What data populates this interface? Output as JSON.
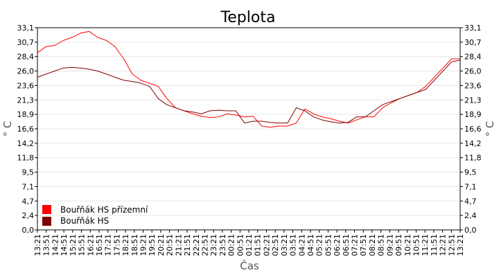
{
  "chart_data": {
    "type": "line",
    "title": "Teplota",
    "xlabel": "Čas",
    "ylabel": "° C",
    "ylim": [
      0,
      33.1
    ],
    "yticks": [
      "0,0",
      "2,4",
      "4,7",
      "7,1",
      "9,5",
      "11,8",
      "14,2",
      "16,6",
      "18,9",
      "21,3",
      "23,6",
      "26,0",
      "28,4",
      "30,7",
      "33,1"
    ],
    "ytick_values": [
      0,
      2.365,
      4.729,
      7.094,
      9.457,
      11.821,
      14.186,
      16.55,
      18.914,
      21.279,
      23.643,
      26.007,
      28.371,
      30.736,
      33.1
    ],
    "xticks": [
      "13:21",
      "13:51",
      "14:21",
      "14:51",
      "15:21",
      "15:51",
      "16:21",
      "16:51",
      "17:21",
      "17:51",
      "18:21",
      "18:51",
      "19:21",
      "19:51",
      "20:21",
      "20:51",
      "21:21",
      "21:51",
      "22:21",
      "22:51",
      "23:21",
      "23:51",
      "00:21",
      "00:51",
      "01:21",
      "01:51",
      "02:21",
      "02:51",
      "03:21",
      "03:51",
      "04:21",
      "04:51",
      "05:21",
      "05:51",
      "06:21",
      "06:51",
      "07:21",
      "07:51",
      "08:21",
      "08:51",
      "09:21",
      "09:51",
      "10:21",
      "10:51",
      "11:21",
      "11:51",
      "12:21",
      "12:51",
      "13:21"
    ],
    "grid": true,
    "legend_position": "bottom-left",
    "series": [
      {
        "name": "Bouřňák HS přízemní",
        "color": "#ff0000",
        "values": [
          29.0,
          30.0,
          30.2,
          31.0,
          31.5,
          32.2,
          32.5,
          31.5,
          31.0,
          30.0,
          28.0,
          25.5,
          24.5,
          24.0,
          23.5,
          21.5,
          20.0,
          19.5,
          19.0,
          18.6,
          18.4,
          18.5,
          19.0,
          18.8,
          18.5,
          18.6,
          17.0,
          16.8,
          17.0,
          17.0,
          17.5,
          19.8,
          19.0,
          18.5,
          18.2,
          17.8,
          17.5,
          18.0,
          18.5,
          18.5,
          20.0,
          20.8,
          21.5,
          22.0,
          22.5,
          23.5,
          25.0,
          26.5,
          28.0,
          28.0
        ]
      },
      {
        "name": "Bouřňák HS",
        "color": "#800000",
        "values": [
          25.0,
          25.5,
          26.0,
          26.5,
          26.6,
          26.5,
          26.3,
          26.0,
          25.5,
          25.0,
          24.5,
          24.3,
          24.0,
          23.5,
          21.5,
          20.5,
          20.0,
          19.5,
          19.3,
          19.0,
          19.5,
          19.6,
          19.5,
          19.5,
          17.5,
          17.8,
          17.8,
          17.6,
          17.5,
          17.5,
          20.0,
          19.5,
          18.5,
          18.0,
          17.7,
          17.5,
          17.6,
          18.5,
          18.5,
          19.5,
          20.5,
          21.0,
          21.5,
          22.0,
          22.5,
          23.0,
          24.5,
          26.0,
          27.5,
          27.8
        ]
      }
    ]
  }
}
